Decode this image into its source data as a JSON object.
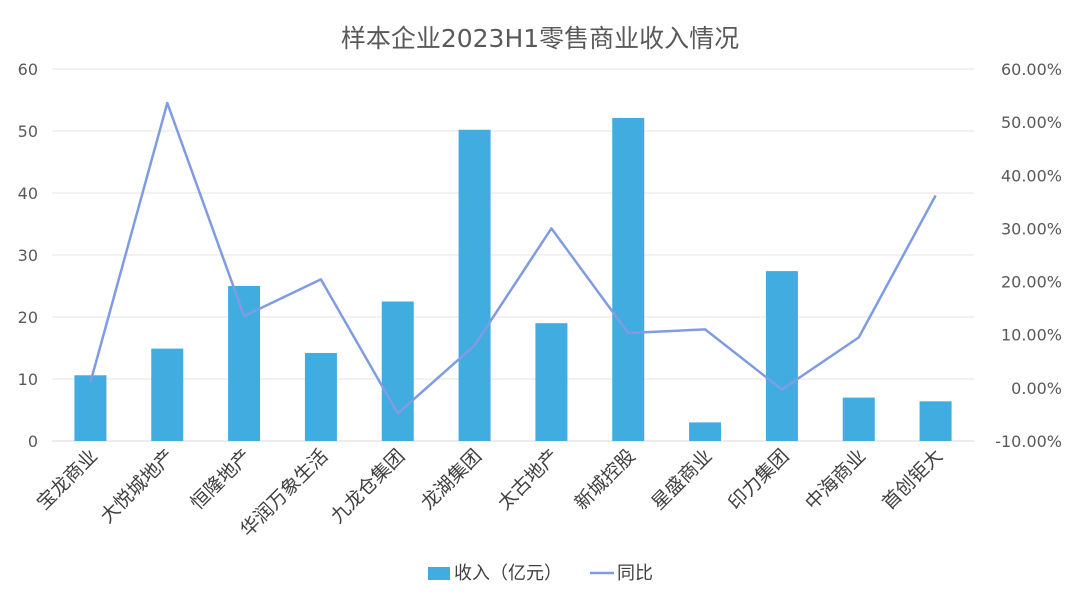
{
  "chart_data": {
    "type": "bar",
    "title": "样本企业2023H1零售商业收入情况",
    "categories": [
      "宝龙商业",
      "大悦城地产",
      "恒隆地产",
      "华润万象生活",
      "九龙仓集团",
      "龙湖集团",
      "太古地产",
      "新城控股",
      "星盛商业",
      "印力集团",
      "中海商业",
      "首创钜大"
    ],
    "series": [
      {
        "name": "收入（亿元）",
        "type": "bar",
        "axis": "left",
        "color": "#41ACDF",
        "values": [
          10.6,
          14.9,
          25.0,
          14.2,
          22.5,
          50.2,
          19.0,
          52.1,
          3.0,
          27.4,
          7.0,
          6.4
        ]
      },
      {
        "name": "同比",
        "type": "line",
        "axis": "right",
        "color": "#7F9CE3",
        "values": [
          0.01,
          0.536,
          0.135,
          0.204,
          -0.048,
          0.08,
          0.3,
          0.103,
          0.11,
          -0.003,
          0.095,
          0.362
        ]
      }
    ],
    "y_left": {
      "min": 0,
      "max": 60,
      "ticks": [
        "0",
        "10",
        "20",
        "30",
        "40",
        "50",
        "60"
      ]
    },
    "y_right": {
      "min": -0.1,
      "max": 0.6,
      "ticks": [
        "-10.00%",
        "0.00%",
        "10.00%",
        "20.00%",
        "30.00%",
        "40.00%",
        "50.00%",
        "60.00%"
      ]
    },
    "grid": true,
    "legend_position": "bottom"
  }
}
